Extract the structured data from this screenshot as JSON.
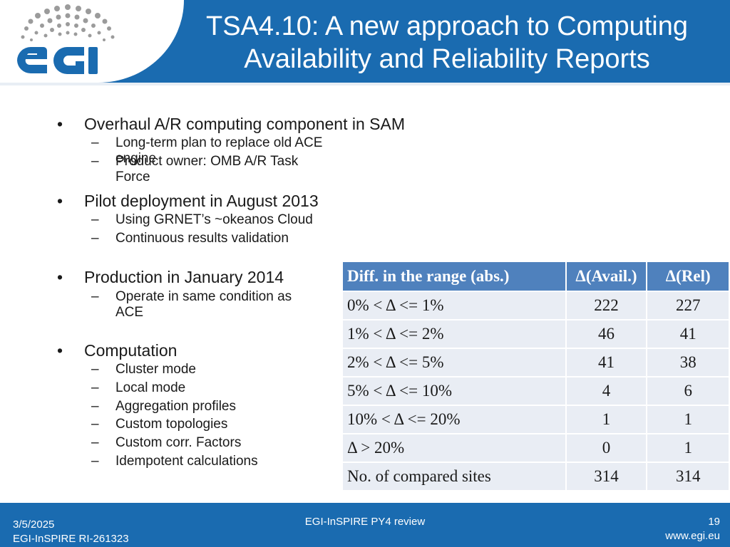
{
  "header": {
    "title_line1": "TSA4.10: A new approach to Computing",
    "title_line2": "Availability and Reliability Reports",
    "logo_text": "egi"
  },
  "bullets": [
    {
      "text": "Overhaul A/R computing component in SAM",
      "sub": [
        "Long-term plan to replace old ACE engine",
        "Product owner: OMB A/R Task Force"
      ]
    },
    {
      "text": "Pilot deployment in August 2013",
      "sub": [
        "Using GRNET’s ~okeanos Cloud",
        "Continuous results validation"
      ]
    },
    {
      "text": "Production in January 2014",
      "sub": [
        "Operate in same condition as ACE"
      ]
    },
    {
      "text": "Computation",
      "sub": [
        "Cluster mode",
        "Local mode",
        "Aggregation profiles",
        "Custom topologies",
        "Custom corr. Factors",
        "Idempotent calculations"
      ]
    }
  ],
  "bullet_marker": "•",
  "dash_marker": "–",
  "table": {
    "headers": [
      "Diff. in the range (abs.)",
      "Δ(Avail.)",
      "Δ(Rel)"
    ],
    "rows": [
      [
        "0% < Δ <= 1%",
        "222",
        "227"
      ],
      [
        "1% < Δ <= 2%",
        "46",
        "41"
      ],
      [
        "2% < Δ <= 5%",
        "41",
        "38"
      ],
      [
        "5% < Δ <= 10%",
        "4",
        "6"
      ],
      [
        "10% < Δ <= 20%",
        "1",
        "1"
      ],
      [
        "Δ > 20%",
        "0",
        "1"
      ],
      [
        "No. of compared sites",
        "314",
        "314"
      ]
    ]
  },
  "footer": {
    "date": "3/5/2025",
    "project_id": "EGI-InSPIRE RI-261323",
    "center": "EGI-InSPIRE PY4 review",
    "page": "19",
    "url": "www.egi.eu"
  },
  "colors": {
    "brand_blue": "#1a6bb0",
    "table_header": "#4f81bd",
    "table_cell": "#e9edf4"
  }
}
